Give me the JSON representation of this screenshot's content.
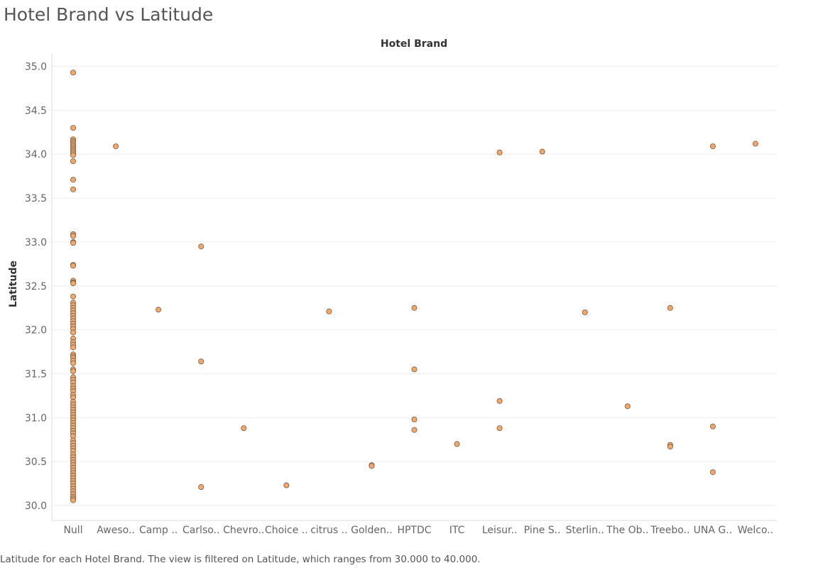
{
  "page": {
    "title": "Hotel Brand vs Latitude",
    "caption": "Latitude for each Hotel Brand. The view is filtered on Latitude, which ranges from 30.000 to 40.000."
  },
  "colors": {
    "marker_fill": "#F2A76B",
    "marker_stroke": "#7A5A40",
    "gridline": "#EEEEEE",
    "axis_text": "#666666",
    "label_text": "#333333"
  },
  "chart_data": {
    "type": "scatter",
    "title": "",
    "xlabel": "Hotel Brand",
    "ylabel": "Latitude",
    "ylim": [
      29.83,
      35.15
    ],
    "yticks": [
      "30.0",
      "30.5",
      "31.0",
      "31.5",
      "32.0",
      "32.5",
      "33.0",
      "33.5",
      "34.0",
      "34.5",
      "35.0"
    ],
    "grid": true,
    "categories": [
      "Null",
      "Aweso..",
      "Camp ..",
      "Carlso..",
      "Chevro..",
      "Choice ..",
      "citrus ..",
      "Golden..",
      "HPTDC",
      "ITC",
      "Leisur..",
      "Pine S..",
      "Sterlin..",
      "The Ob..",
      "Treebo..",
      "UNA G..",
      "Welco.."
    ],
    "points": [
      {
        "category": "Null",
        "y": 34.93
      },
      {
        "category": "Null",
        "y": 34.3
      },
      {
        "category": "Null",
        "y": 34.17
      },
      {
        "category": "Null",
        "y": 34.15
      },
      {
        "category": "Null",
        "y": 34.13
      },
      {
        "category": "Null",
        "y": 34.11
      },
      {
        "category": "Null",
        "y": 34.09
      },
      {
        "category": "Null",
        "y": 34.07
      },
      {
        "category": "Null",
        "y": 34.05
      },
      {
        "category": "Null",
        "y": 34.03
      },
      {
        "category": "Null",
        "y": 34.01
      },
      {
        "category": "Null",
        "y": 33.99
      },
      {
        "category": "Null",
        "y": 33.92
      },
      {
        "category": "Null",
        "y": 33.71
      },
      {
        "category": "Null",
        "y": 33.6
      },
      {
        "category": "Null",
        "y": 33.09
      },
      {
        "category": "Null",
        "y": 33.07
      },
      {
        "category": "Null",
        "y": 33.0
      },
      {
        "category": "Null",
        "y": 32.99
      },
      {
        "category": "Null",
        "y": 32.74
      },
      {
        "category": "Null",
        "y": 32.73
      },
      {
        "category": "Null",
        "y": 32.56
      },
      {
        "category": "Null",
        "y": 32.54
      },
      {
        "category": "Null",
        "y": 32.53
      },
      {
        "category": "Null",
        "y": 32.38
      },
      {
        "category": "Null",
        "y": 32.31
      },
      {
        "category": "Null",
        "y": 32.28
      },
      {
        "category": "Null",
        "y": 32.25
      },
      {
        "category": "Null",
        "y": 32.22
      },
      {
        "category": "Null",
        "y": 32.19
      },
      {
        "category": "Null",
        "y": 32.16
      },
      {
        "category": "Null",
        "y": 32.13
      },
      {
        "category": "Null",
        "y": 32.1
      },
      {
        "category": "Null",
        "y": 32.07
      },
      {
        "category": "Null",
        "y": 32.04
      },
      {
        "category": "Null",
        "y": 32.01
      },
      {
        "category": "Null",
        "y": 31.97
      },
      {
        "category": "Null",
        "y": 31.9
      },
      {
        "category": "Null",
        "y": 31.86
      },
      {
        "category": "Null",
        "y": 31.83
      },
      {
        "category": "Null",
        "y": 31.8
      },
      {
        "category": "Null",
        "y": 31.72
      },
      {
        "category": "Null",
        "y": 31.7
      },
      {
        "category": "Null",
        "y": 31.68
      },
      {
        "category": "Null",
        "y": 31.65
      },
      {
        "category": "Null",
        "y": 31.62
      },
      {
        "category": "Null",
        "y": 31.55
      },
      {
        "category": "Null",
        "y": 31.53
      },
      {
        "category": "Null",
        "y": 31.46
      },
      {
        "category": "Null",
        "y": 31.43
      },
      {
        "category": "Null",
        "y": 31.4
      },
      {
        "category": "Null",
        "y": 31.36
      },
      {
        "category": "Null",
        "y": 31.33
      },
      {
        "category": "Null",
        "y": 31.3
      },
      {
        "category": "Null",
        "y": 31.26
      },
      {
        "category": "Null",
        "y": 31.23
      },
      {
        "category": "Null",
        "y": 31.18
      },
      {
        "category": "Null",
        "y": 31.15
      },
      {
        "category": "Null",
        "y": 31.12
      },
      {
        "category": "Null",
        "y": 31.09
      },
      {
        "category": "Null",
        "y": 31.06
      },
      {
        "category": "Null",
        "y": 31.03
      },
      {
        "category": "Null",
        "y": 31.0
      },
      {
        "category": "Null",
        "y": 30.97
      },
      {
        "category": "Null",
        "y": 30.94
      },
      {
        "category": "Null",
        "y": 30.91
      },
      {
        "category": "Null",
        "y": 30.88
      },
      {
        "category": "Null",
        "y": 30.85
      },
      {
        "category": "Null",
        "y": 30.82
      },
      {
        "category": "Null",
        "y": 30.79
      },
      {
        "category": "Null",
        "y": 30.74
      },
      {
        "category": "Null",
        "y": 30.71
      },
      {
        "category": "Null",
        "y": 30.68
      },
      {
        "category": "Null",
        "y": 30.65
      },
      {
        "category": "Null",
        "y": 30.62
      },
      {
        "category": "Null",
        "y": 30.58
      },
      {
        "category": "Null",
        "y": 30.55
      },
      {
        "category": "Null",
        "y": 30.52
      },
      {
        "category": "Null",
        "y": 30.49
      },
      {
        "category": "Null",
        "y": 30.46
      },
      {
        "category": "Null",
        "y": 30.43
      },
      {
        "category": "Null",
        "y": 30.4
      },
      {
        "category": "Null",
        "y": 30.37
      },
      {
        "category": "Null",
        "y": 30.34
      },
      {
        "category": "Null",
        "y": 30.31
      },
      {
        "category": "Null",
        "y": 30.28
      },
      {
        "category": "Null",
        "y": 30.25
      },
      {
        "category": "Null",
        "y": 30.22
      },
      {
        "category": "Null",
        "y": 30.19
      },
      {
        "category": "Null",
        "y": 30.16
      },
      {
        "category": "Null",
        "y": 30.13
      },
      {
        "category": "Null",
        "y": 30.1
      },
      {
        "category": "Null",
        "y": 30.08
      },
      {
        "category": "Null",
        "y": 30.06
      },
      {
        "category": "Aweso..",
        "y": 34.09
      },
      {
        "category": "Camp ..",
        "y": 32.23
      },
      {
        "category": "Carlso..",
        "y": 32.95
      },
      {
        "category": "Carlso..",
        "y": 31.64
      },
      {
        "category": "Carlso..",
        "y": 30.21
      },
      {
        "category": "Chevro..",
        "y": 30.88
      },
      {
        "category": "Choice ..",
        "y": 30.23
      },
      {
        "category": "citrus ..",
        "y": 32.21
      },
      {
        "category": "Golden..",
        "y": 30.46
      },
      {
        "category": "Golden..",
        "y": 30.45
      },
      {
        "category": "HPTDC",
        "y": 32.25
      },
      {
        "category": "HPTDC",
        "y": 31.55
      },
      {
        "category": "HPTDC",
        "y": 30.98
      },
      {
        "category": "HPTDC",
        "y": 30.86
      },
      {
        "category": "ITC",
        "y": 30.7
      },
      {
        "category": "Leisur..",
        "y": 34.02
      },
      {
        "category": "Leisur..",
        "y": 31.19
      },
      {
        "category": "Leisur..",
        "y": 30.88
      },
      {
        "category": "Pine S..",
        "y": 34.03
      },
      {
        "category": "Sterlin..",
        "y": 32.2
      },
      {
        "category": "The Ob..",
        "y": 31.13
      },
      {
        "category": "Treebo..",
        "y": 32.25
      },
      {
        "category": "Treebo..",
        "y": 30.69
      },
      {
        "category": "Treebo..",
        "y": 30.67
      },
      {
        "category": "UNA G..",
        "y": 34.09
      },
      {
        "category": "UNA G..",
        "y": 30.9
      },
      {
        "category": "UNA G..",
        "y": 30.38
      },
      {
        "category": "Welco..",
        "y": 34.12
      }
    ]
  }
}
